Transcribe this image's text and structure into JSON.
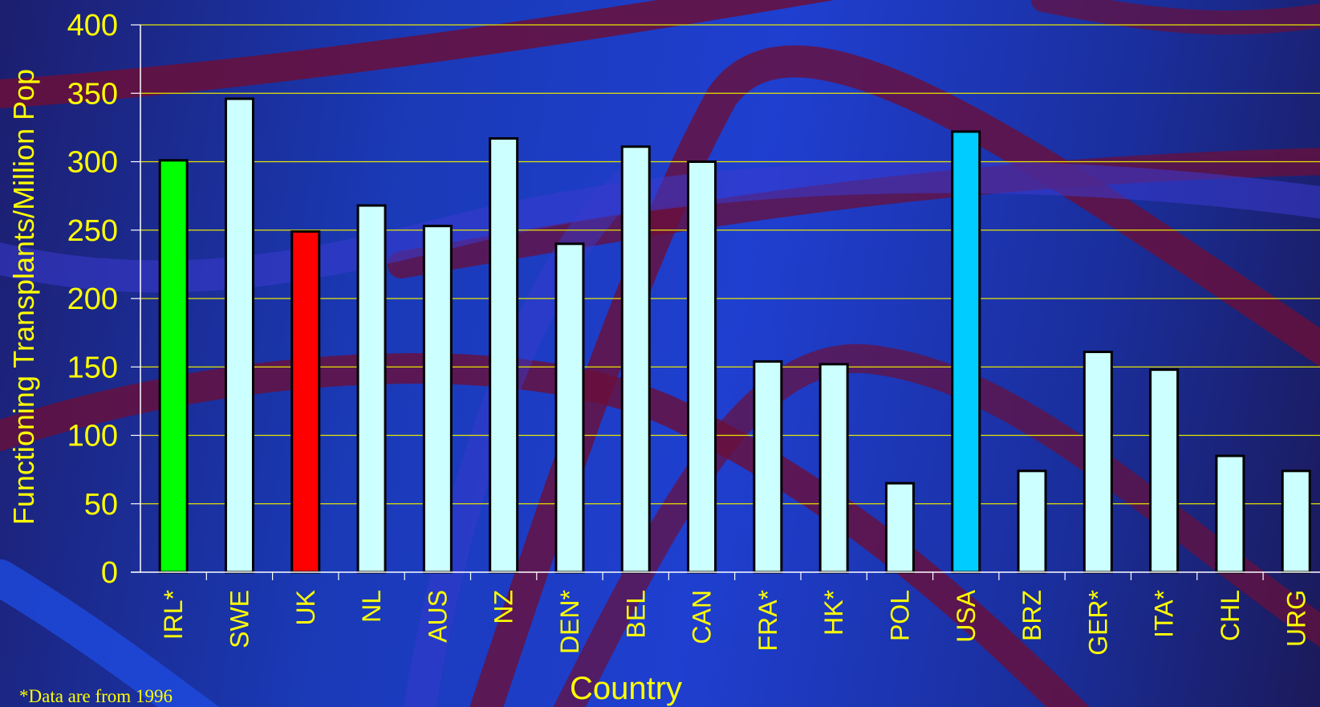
{
  "colors": {
    "background": "#1a3ab8",
    "axis_text": "#ffff00",
    "gridline": "#e6e600",
    "default_bar": "#ccffff",
    "highlight_irl": "#00ff00",
    "highlight_uk": "#ff0000",
    "highlight_usa": "#00ccff"
  },
  "footnote": "*Data are from 1996",
  "chart_data": {
    "type": "bar",
    "title": "",
    "xlabel": "Country",
    "ylabel": "Functioning Transplants/Million  Pop",
    "ylim": [
      0,
      400
    ],
    "yticks": [
      0,
      50,
      100,
      150,
      200,
      250,
      300,
      350,
      400
    ],
    "grid": true,
    "categories": [
      "IRL*",
      "SWE",
      "UK",
      "NL",
      "AUS",
      "NZ",
      "DEN*",
      "BEL",
      "CAN",
      "FRA*",
      "HK*",
      "POL",
      "USA",
      "BRZ",
      "GER*",
      "ITA*",
      "CHL",
      "URG"
    ],
    "values": [
      301,
      346,
      249,
      268,
      253,
      317,
      240,
      311,
      300,
      154,
      152,
      65,
      322,
      74,
      161,
      148,
      85,
      74
    ],
    "bar_colors": [
      "#00ff00",
      "#ccffff",
      "#ff0000",
      "#ccffff",
      "#ccffff",
      "#ccffff",
      "#ccffff",
      "#ccffff",
      "#ccffff",
      "#ccffff",
      "#ccffff",
      "#ccffff",
      "#00ccff",
      "#ccffff",
      "#ccffff",
      "#ccffff",
      "#ccffff",
      "#ccffff"
    ]
  }
}
